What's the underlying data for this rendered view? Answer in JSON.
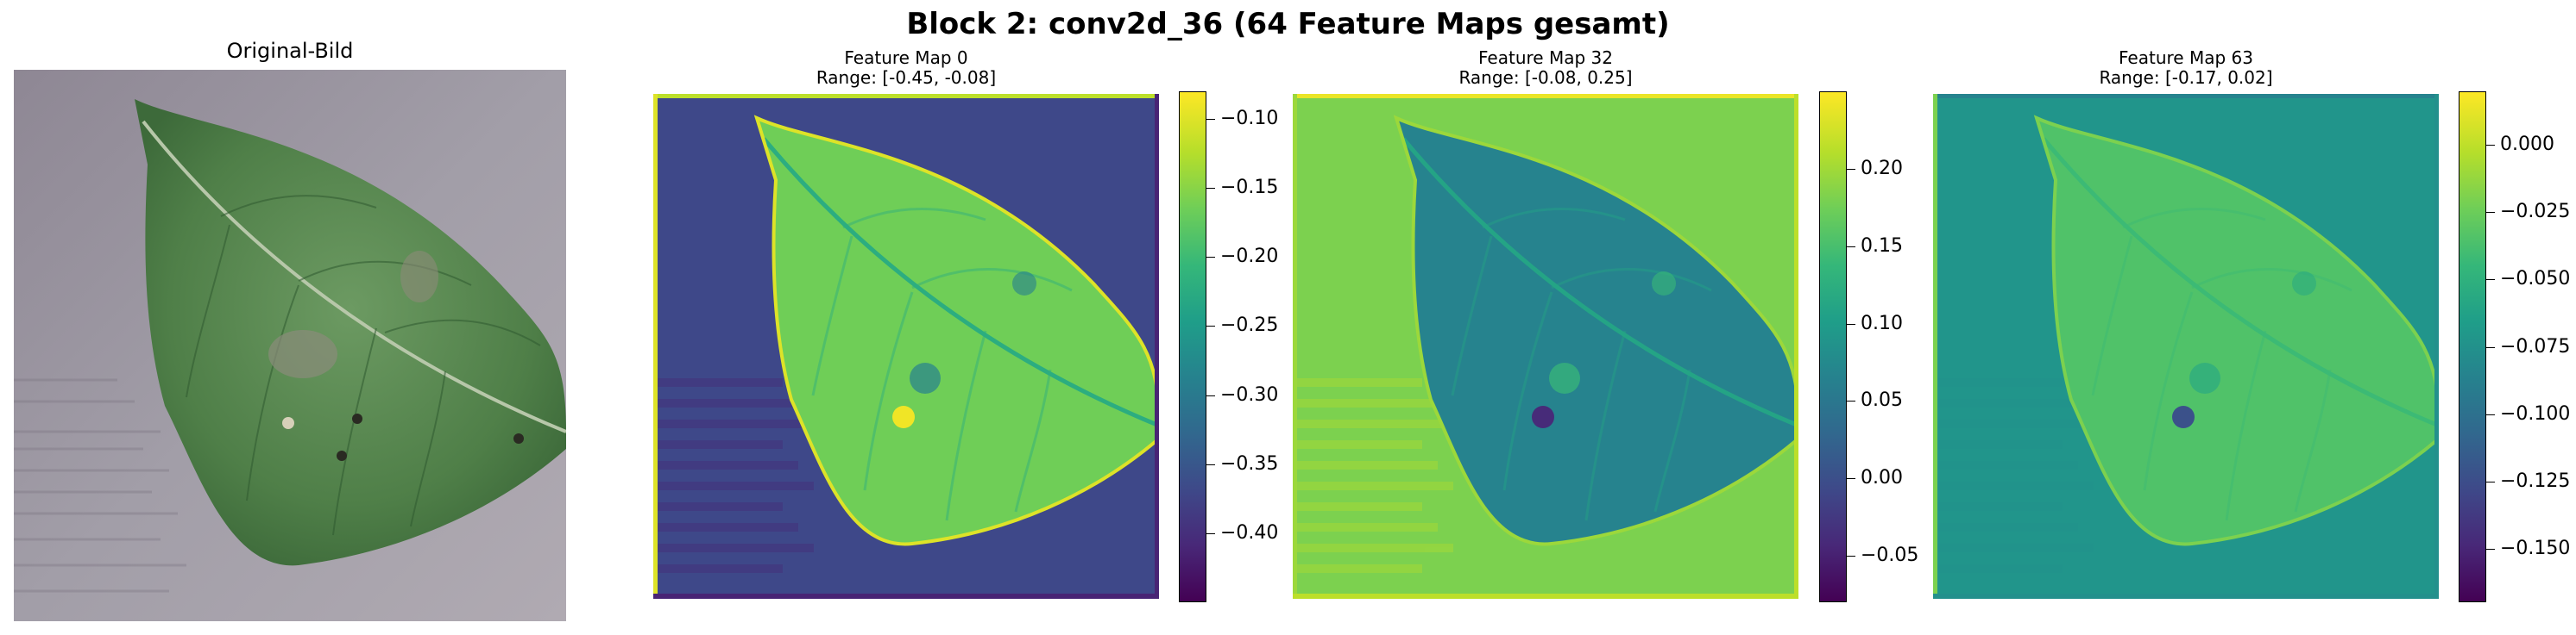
{
  "suptitle": "Block 2: conv2d_36 (64 Feature Maps gesamt)",
  "original": {
    "title": "Original-Bild"
  },
  "colormap": "viridis",
  "chart_data": [
    {
      "type": "heatmap",
      "title": "Feature Map 0",
      "subtitle": "Range: [-0.45, -0.08]",
      "range": [
        -0.45,
        -0.08
      ],
      "colorbar_ticks": [
        -0.1,
        -0.15,
        -0.2,
        -0.25,
        -0.3,
        -0.35,
        -0.4
      ],
      "levels": {
        "background": 0.22,
        "leaf": 0.78,
        "vein": 0.62,
        "spot": 0.98,
        "shadow": 0.1,
        "edge_top": 0.9,
        "edge_left": 0.95
      }
    },
    {
      "type": "heatmap",
      "title": "Feature Map 32",
      "subtitle": "Range: [-0.08, 0.25]",
      "range": [
        -0.08,
        0.25
      ],
      "colorbar_ticks": [
        0.2,
        0.15,
        0.1,
        0.05,
        0.0,
        -0.05
      ],
      "levels": {
        "background": 0.8,
        "leaf": 0.45,
        "vein": 0.58,
        "spot": 0.12,
        "shadow": 0.9,
        "edge_top": 0.97,
        "edge_left": 0.85
      }
    },
    {
      "type": "heatmap",
      "title": "Feature Map 63",
      "subtitle": "Range: [-0.17, 0.02]",
      "range": [
        -0.17,
        0.02
      ],
      "colorbar_ticks": [
        0.0,
        -0.025,
        -0.05,
        -0.075,
        -0.1,
        -0.125,
        -0.15
      ],
      "levels": {
        "background": 0.52,
        "leaf": 0.72,
        "vein": 0.68,
        "spot": 0.25,
        "shadow": 0.5,
        "edge_top": 0.45,
        "edge_left": 0.8
      }
    }
  ]
}
